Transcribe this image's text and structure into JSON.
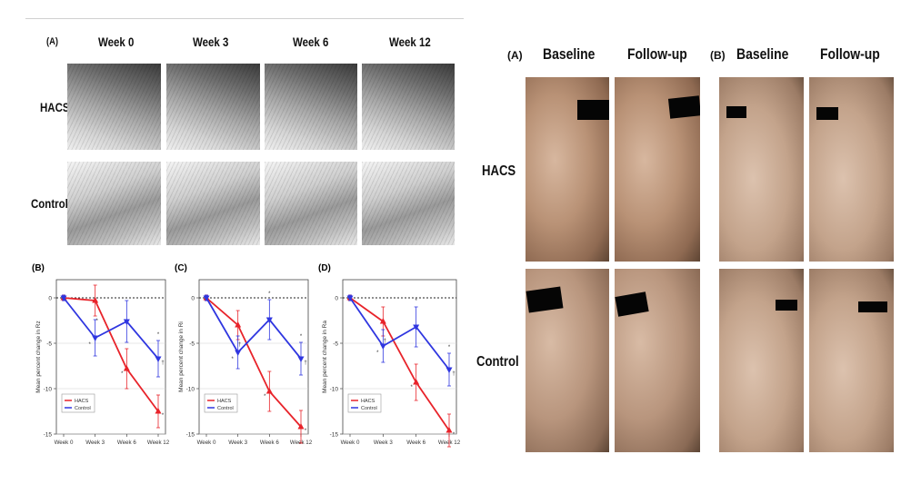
{
  "left_figure": {
    "panel_a_label": "(A)",
    "column_headers": [
      "Week 0",
      "Week 3",
      "Week 6",
      "Week 12"
    ],
    "row_labels": [
      "HACS",
      "Control"
    ]
  },
  "right_figure": {
    "panel_a_label": "(A)",
    "panel_b_label": "(B)",
    "column_headers": [
      "Baseline",
      "Follow-up",
      "Baseline",
      "Follow-up"
    ],
    "row_labels": [
      "HACS",
      "Control"
    ]
  },
  "colors": {
    "hacs": "#e8232a",
    "control": "#2f36e0"
  },
  "chart_data": [
    {
      "type": "line",
      "panel": "(B)",
      "ylabel": "Mean percent change in Rz",
      "categories": [
        "Week 0",
        "Week 3",
        "Week 6",
        "Week 12"
      ],
      "yticks": [
        0,
        -5,
        -10,
        -15
      ],
      "ylim": [
        -15,
        2
      ],
      "legend": [
        "HACS",
        "Control"
      ],
      "series": [
        {
          "name": "HACS",
          "values": [
            0,
            -0.3,
            -7.8,
            -12.5
          ],
          "err": [
            0.3,
            1.7,
            2.2,
            1.8
          ]
        },
        {
          "name": "Control",
          "values": [
            0,
            -4.4,
            -2.6,
            -6.7
          ],
          "err": [
            0.3,
            2.0,
            2.3,
            2.0
          ]
        }
      ],
      "markers": [
        "*",
        "*",
        "*",
        "†",
        "*",
        "*"
      ]
    },
    {
      "type": "line",
      "panel": "(C)",
      "ylabel": "Mean percent change in Ri",
      "categories": [
        "Week 0",
        "Week 3",
        "Week 6",
        "Week 12"
      ],
      "yticks": [
        0,
        -5,
        -10,
        -15
      ],
      "ylim": [
        -15,
        2
      ],
      "legend": [
        "HACS",
        "Control"
      ],
      "series": [
        {
          "name": "HACS",
          "values": [
            0,
            -3.0,
            -10.3,
            -14.2
          ],
          "err": [
            0.3,
            1.6,
            2.2,
            1.8
          ]
        },
        {
          "name": "Control",
          "values": [
            0,
            -6.0,
            -2.4,
            -6.7
          ],
          "err": [
            0.3,
            1.8,
            2.2,
            1.8
          ]
        }
      ],
      "markers": [
        "*",
        "*",
        "*",
        "†",
        "*",
        "†",
        "*"
      ]
    },
    {
      "type": "line",
      "panel": "(D)",
      "ylabel": "Mean percent change in Ra",
      "categories": [
        "Week 0",
        "Week 3",
        "Week 6",
        "Week 12"
      ],
      "yticks": [
        0,
        -5,
        -10,
        -15
      ],
      "ylim": [
        -15,
        2
      ],
      "legend": [
        "HACS",
        "Control"
      ],
      "series": [
        {
          "name": "HACS",
          "values": [
            0,
            -2.6,
            -9.3,
            -14.6
          ],
          "err": [
            0.3,
            1.6,
            2.0,
            1.8
          ]
        },
        {
          "name": "Control",
          "values": [
            0,
            -5.3,
            -3.2,
            -7.9
          ],
          "err": [
            0.3,
            1.8,
            2.2,
            1.8
          ]
        }
      ],
      "markers": [
        "*",
        "*",
        "*",
        "†",
        "*",
        "†",
        "*"
      ]
    }
  ]
}
